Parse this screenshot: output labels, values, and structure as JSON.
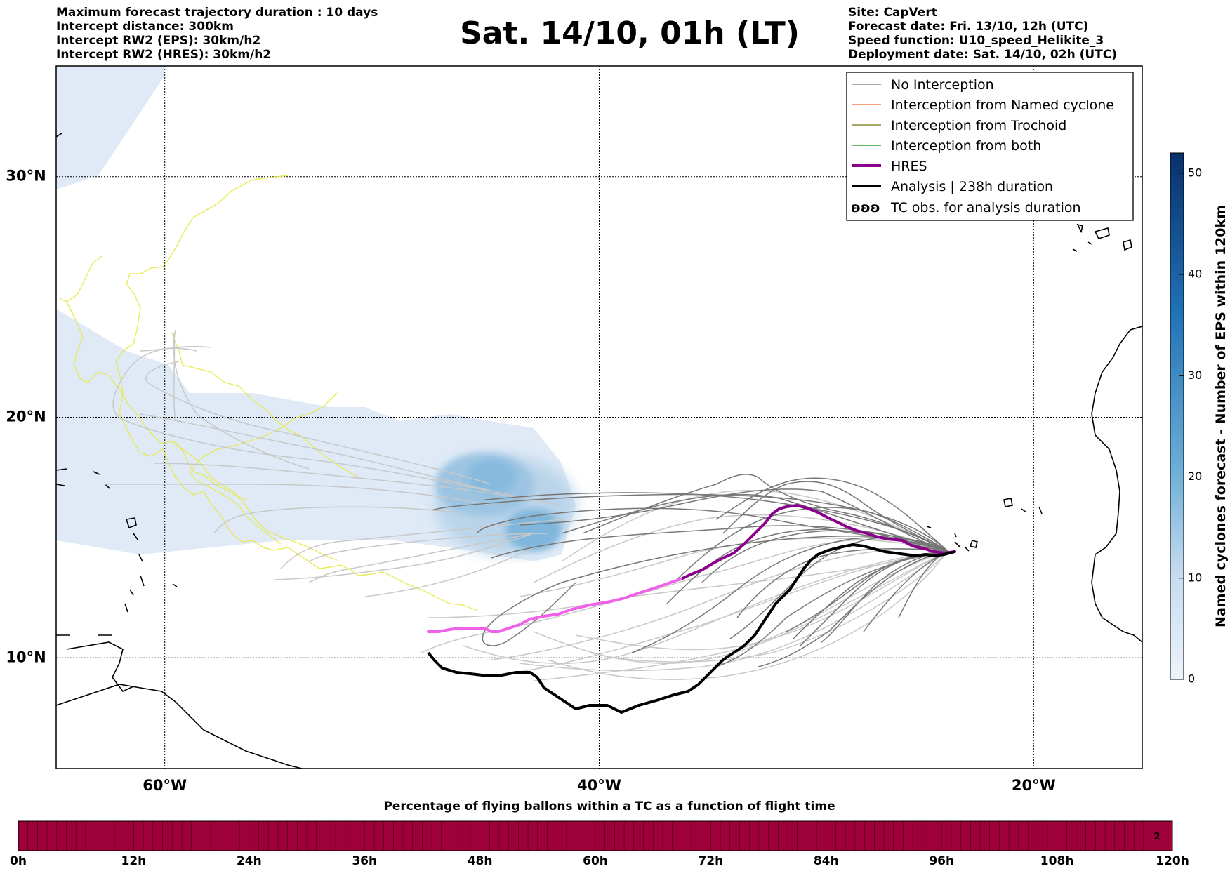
{
  "header": {
    "left": [
      "Maximum forecast trajectory duration : 10 days",
      "Intercept distance: 300km",
      "Intercept RW2 (EPS):  30km/h2",
      "Intercept RW2 (HRES): 30km/h2"
    ],
    "title": "Sat. 14/10, 01h (LT)",
    "right": [
      "Site: CapVert",
      "Forecast date: Fri. 13/10, 12h (UTC)",
      "Speed function: U10_speed_Helikite_3",
      "Deployment date: Sat. 14/10, 02h (UTC)"
    ]
  },
  "map": {
    "lat_labels": [
      "30°N",
      "20°N",
      "10°N"
    ],
    "lon_labels": [
      "60°W",
      "40°W",
      "20°W"
    ],
    "lat_values": [
      30,
      20,
      10
    ],
    "lon_values": [
      -60,
      -40,
      -20
    ],
    "extent": {
      "lon_min": -65,
      "lon_max": -15,
      "lat_min": 5.4,
      "lat_max": 34.6
    }
  },
  "legend": {
    "items": [
      {
        "label": "No Interception",
        "color": "#8c8c8c",
        "kind": "thin"
      },
      {
        "label": "Interception from Named cyclone",
        "color": "#ff7f50",
        "kind": "thin"
      },
      {
        "label": "Interception from Trochoid",
        "color": "#8b8b3a",
        "kind": "thin"
      },
      {
        "label": "Interception from both",
        "color": "#2ca02c",
        "kind": "thin"
      },
      {
        "label": "HRES",
        "color": "#8b008b",
        "kind": "thick"
      },
      {
        "label": "Analysis | 238h duration",
        "color": "#000000",
        "kind": "thick"
      },
      {
        "label": "TC obs. for analysis duration",
        "color": "#000000",
        "kind": "symbol",
        "symbol": "ʚʚʚ"
      }
    ]
  },
  "colorbar": {
    "label": "Named cyclones forecast - Number of EPS within 120km",
    "ticks": [
      "0",
      "10",
      "20",
      "30",
      "40",
      "50"
    ],
    "tick_values": [
      0,
      10,
      20,
      30,
      40,
      50
    ],
    "max": 52,
    "color_low": "#e8f0f8",
    "color_high": "#08306b"
  },
  "bottom_bar": {
    "title": "Percentage of flying ballons within a TC as a function of flight time",
    "ticks": [
      "0h",
      "12h",
      "24h",
      "36h",
      "48h",
      "60h",
      "72h",
      "84h",
      "96h",
      "108h",
      "120h"
    ],
    "color": "#9e003a",
    "last_cell_label": "2"
  },
  "colors": {
    "eps_tracks": "#e8e84a",
    "hres_early": "#f060e8",
    "hres_late": "#8b008b",
    "analysis": "#000000",
    "spread_dark": "#777777",
    "spread_light": "#c8c8c8"
  }
}
